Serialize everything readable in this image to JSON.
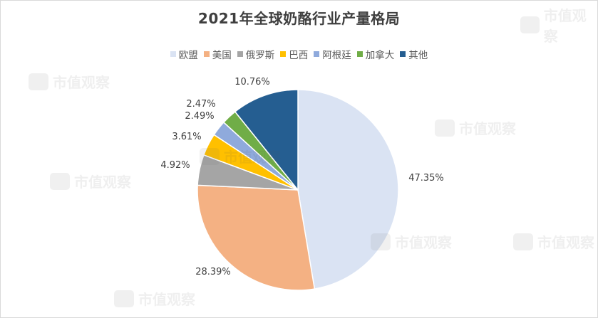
{
  "chart_data": {
    "type": "pie",
    "title": "2021年全球奶酪行业产量格局",
    "legend_position": "top",
    "slices": [
      {
        "label": "欧盟",
        "value": 47.35,
        "value_label": "47.35%",
        "color": "#dae3f3"
      },
      {
        "label": "美国",
        "value": 28.39,
        "value_label": "28.39%",
        "color": "#f4b183"
      },
      {
        "label": "俄罗斯",
        "value": 4.92,
        "value_label": "4.92%",
        "color": "#a5a5a5"
      },
      {
        "label": "巴西",
        "value": 3.61,
        "value_label": "3.61%",
        "color": "#ffc000"
      },
      {
        "label": "阿根廷",
        "value": 2.49,
        "value_label": "2.49%",
        "color": "#8faadc"
      },
      {
        "label": "加拿大",
        "value": 2.47,
        "value_label": "2.47%",
        "color": "#70ad47"
      },
      {
        "label": "其他",
        "value": 10.76,
        "value_label": "10.76%",
        "color": "#255e91"
      }
    ]
  },
  "watermark": {
    "text": "市值观察"
  }
}
